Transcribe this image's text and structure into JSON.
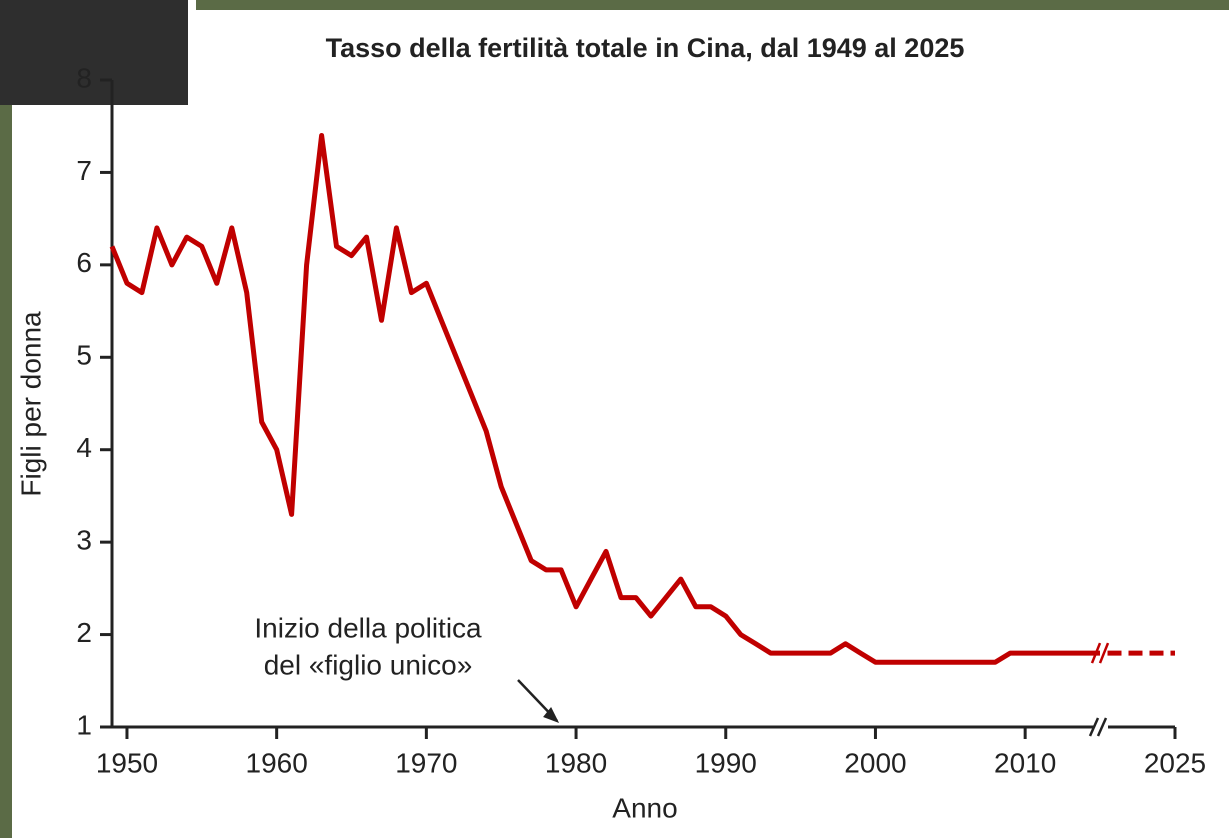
{
  "chart_data": {
    "type": "line",
    "title": "Tasso della fertilità totale in Cina, dal 1949 al 2025",
    "xlabel": "Anno",
    "ylabel": "Figli per donna",
    "xlim": [
      1949,
      2025
    ],
    "x_break": 2015,
    "xticks": [
      1950,
      1960,
      1970,
      1980,
      1990,
      2000,
      2010,
      2025
    ],
    "ylim": [
      1,
      8
    ],
    "yticks": [
      1,
      2,
      3,
      4,
      5,
      6,
      7,
      8
    ],
    "grid": false,
    "series": [
      {
        "color": "#c00000",
        "dashed": false,
        "x": [
          1949,
          1950,
          1951,
          1952,
          1953,
          1954,
          1955,
          1956,
          1957,
          1958,
          1959,
          1960,
          1961,
          1962,
          1963,
          1964,
          1965,
          1966,
          1967,
          1968,
          1969,
          1970,
          1971,
          1972,
          1973,
          1974,
          1975,
          1976,
          1977,
          1978,
          1979,
          1980,
          1981,
          1982,
          1983,
          1984,
          1985,
          1986,
          1987,
          1988,
          1989,
          1990,
          1991,
          1992,
          1993,
          1994,
          1995,
          1996,
          1997,
          1998,
          1999,
          2000,
          2001,
          2002,
          2003,
          2004,
          2005,
          2006,
          2007,
          2008,
          2009,
          2010,
          2011,
          2012,
          2013,
          2014,
          2015
        ],
        "values": [
          6.2,
          5.8,
          5.7,
          6.4,
          6.0,
          6.3,
          6.2,
          5.8,
          6.4,
          5.7,
          4.3,
          4.0,
          3.3,
          6.0,
          7.4,
          6.2,
          6.1,
          6.3,
          5.4,
          6.4,
          5.7,
          5.8,
          5.4,
          5.0,
          4.6,
          4.2,
          3.6,
          3.2,
          2.8,
          2.7,
          2.7,
          2.3,
          2.6,
          2.9,
          2.4,
          2.4,
          2.2,
          2.4,
          2.6,
          2.3,
          2.3,
          2.2,
          2.0,
          1.9,
          1.8,
          1.8,
          1.8,
          1.8,
          1.8,
          1.9,
          1.8,
          1.7,
          1.7,
          1.7,
          1.7,
          1.7,
          1.7,
          1.7,
          1.7,
          1.7,
          1.8,
          1.8,
          1.8,
          1.8,
          1.8,
          1.8,
          1.8
        ]
      },
      {
        "color": "#c00000",
        "dashed": true,
        "x": [
          2016,
          2025
        ],
        "values": [
          1.8,
          1.8
        ]
      }
    ],
    "annotation": {
      "lines": [
        "Inizio della politica",
        "del «figlio unico»"
      ],
      "x": 1979
    }
  }
}
